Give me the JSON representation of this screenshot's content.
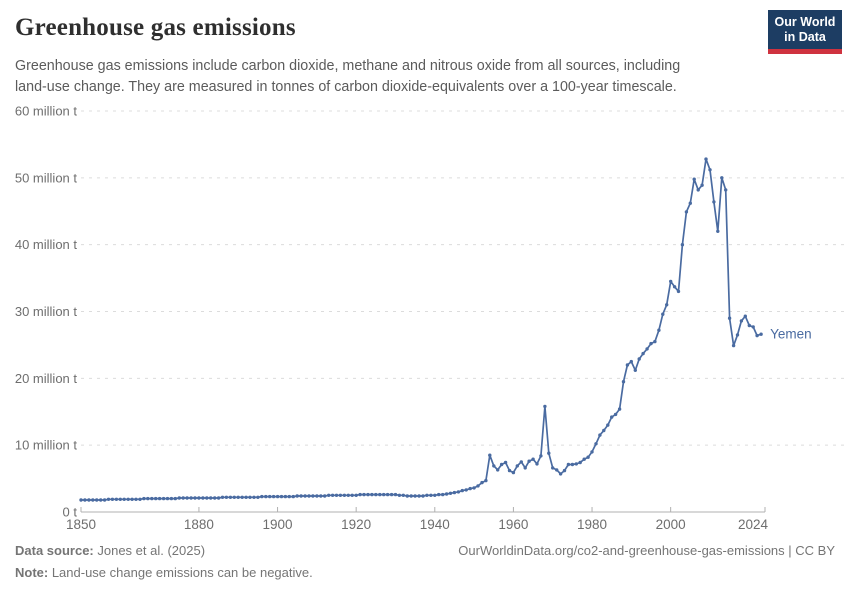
{
  "header": {
    "title": "Greenhouse gas emissions",
    "subtitle_line1": "Greenhouse gas emissions include carbon dioxide, methane and nitrous oxide from all sources, including",
    "subtitle_line2": "land-use change. They are measured in tonnes of carbon dioxide-equivalents over a 100-year timescale.",
    "logo": {
      "line1": "Our World",
      "line2": "in Data"
    }
  },
  "colors": {
    "series_blue": "#4a6ba1",
    "grid": "#dcdcdc",
    "axis": "#b0b0b0",
    "tick_text": "#6e6e6e",
    "logo_navy": "#1d3d63",
    "logo_red": "#cf323f"
  },
  "chart_data": {
    "type": "line",
    "title": "Greenhouse gas emissions",
    "unit": "tonnes of CO2-equivalents",
    "xlim": [
      1850,
      2024
    ],
    "ylim": [
      0,
      60000000
    ],
    "grid": "horizontal-dashed",
    "legend_position": "end-of-line-label",
    "entity_label": "Yemen",
    "y_ticks": [
      {
        "value": 0,
        "label": "0 t"
      },
      {
        "value": 10,
        "label": "10 million t"
      },
      {
        "value": 20,
        "label": "20 million t"
      },
      {
        "value": 30,
        "label": "30 million t"
      },
      {
        "value": 40,
        "label": "40 million t"
      },
      {
        "value": 50,
        "label": "50 million t"
      },
      {
        "value": 60,
        "label": "60 million t"
      }
    ],
    "x_ticks": [
      {
        "year": 1850,
        "label": "1850"
      },
      {
        "year": 1880,
        "label": "1880"
      },
      {
        "year": 1900,
        "label": "1900"
      },
      {
        "year": 1920,
        "label": "1920"
      },
      {
        "year": 1940,
        "label": "1940"
      },
      {
        "year": 1960,
        "label": "1960"
      },
      {
        "year": 1980,
        "label": "1980"
      },
      {
        "year": 2000,
        "label": "2000"
      },
      {
        "year": 2024,
        "label": "2024"
      }
    ],
    "value_unit_scale": "million t",
    "series": [
      {
        "name": "Yemen",
        "color": "#4a6ba1",
        "x": [
          1850,
          1851,
          1852,
          1853,
          1854,
          1855,
          1856,
          1857,
          1858,
          1859,
          1860,
          1861,
          1862,
          1863,
          1864,
          1865,
          1866,
          1867,
          1868,
          1869,
          1870,
          1871,
          1872,
          1873,
          1874,
          1875,
          1876,
          1877,
          1878,
          1879,
          1880,
          1881,
          1882,
          1883,
          1884,
          1885,
          1886,
          1887,
          1888,
          1889,
          1890,
          1891,
          1892,
          1893,
          1894,
          1895,
          1896,
          1897,
          1898,
          1899,
          1900,
          1901,
          1902,
          1903,
          1904,
          1905,
          1906,
          1907,
          1908,
          1909,
          1910,
          1911,
          1912,
          1913,
          1914,
          1915,
          1916,
          1917,
          1918,
          1919,
          1920,
          1921,
          1922,
          1923,
          1924,
          1925,
          1926,
          1927,
          1928,
          1929,
          1930,
          1931,
          1932,
          1933,
          1934,
          1935,
          1936,
          1937,
          1938,
          1939,
          1940,
          1941,
          1942,
          1943,
          1944,
          1945,
          1946,
          1947,
          1948,
          1949,
          1950,
          1951,
          1952,
          1953,
          1954,
          1955,
          1956,
          1957,
          1958,
          1959,
          1960,
          1961,
          1962,
          1963,
          1964,
          1965,
          1966,
          1967,
          1968,
          1969,
          1970,
          1971,
          1972,
          1973,
          1974,
          1975,
          1976,
          1977,
          1978,
          1979,
          1980,
          1981,
          1982,
          1983,
          1984,
          1985,
          1986,
          1987,
          1988,
          1989,
          1990,
          1991,
          1992,
          1993,
          1994,
          1995,
          1996,
          1997,
          1998,
          1999,
          2000,
          2001,
          2002,
          2003,
          2004,
          2005,
          2006,
          2007,
          2008,
          2009,
          2010,
          2011,
          2012,
          2013,
          2014,
          2015,
          2016,
          2017,
          2018,
          2019,
          2020,
          2021,
          2022,
          2023
        ],
        "values_million_t": [
          1.8,
          1.8,
          1.8,
          1.8,
          1.8,
          1.8,
          1.8,
          1.9,
          1.9,
          1.9,
          1.9,
          1.9,
          1.9,
          1.9,
          1.9,
          1.9,
          2.0,
          2.0,
          2.0,
          2.0,
          2.0,
          2.0,
          2.0,
          2.0,
          2.0,
          2.1,
          2.1,
          2.1,
          2.1,
          2.1,
          2.1,
          2.1,
          2.1,
          2.1,
          2.1,
          2.1,
          2.2,
          2.2,
          2.2,
          2.2,
          2.2,
          2.2,
          2.2,
          2.2,
          2.2,
          2.2,
          2.3,
          2.3,
          2.3,
          2.3,
          2.3,
          2.3,
          2.3,
          2.3,
          2.3,
          2.4,
          2.4,
          2.4,
          2.4,
          2.4,
          2.4,
          2.4,
          2.4,
          2.5,
          2.5,
          2.5,
          2.5,
          2.5,
          2.5,
          2.5,
          2.5,
          2.6,
          2.6,
          2.6,
          2.6,
          2.6,
          2.6,
          2.6,
          2.6,
          2.6,
          2.6,
          2.5,
          2.5,
          2.4,
          2.4,
          2.4,
          2.4,
          2.4,
          2.5,
          2.5,
          2.5,
          2.6,
          2.6,
          2.7,
          2.8,
          2.9,
          3.0,
          3.2,
          3.3,
          3.5,
          3.6,
          3.9,
          4.4,
          4.7,
          8.5,
          6.9,
          6.3,
          7.1,
          7.4,
          6.2,
          5.9,
          6.9,
          7.5,
          6.6,
          7.6,
          7.9,
          7.2,
          8.4,
          15.8,
          8.8,
          6.6,
          6.3,
          5.7,
          6.2,
          7.1,
          7.1,
          7.2,
          7.4,
          7.9,
          8.2,
          9.0,
          10.2,
          11.5,
          12.2,
          13.0,
          14.2,
          14.6,
          15.4,
          19.5,
          22.0,
          22.5,
          21.2,
          22.9,
          23.7,
          24.4,
          25.2,
          25.5,
          27.2,
          29.6,
          31.0,
          34.5,
          33.7,
          33.0,
          40.0,
          44.9,
          46.2,
          49.8,
          48.2,
          48.9,
          52.8,
          51.2,
          46.4,
          42.0,
          50.0,
          48.2,
          29.0,
          24.9,
          26.5,
          28.6,
          29.3,
          27.9,
          27.7,
          26.4,
          26.6
        ]
      }
    ]
  },
  "footer": {
    "data_source_label": "Data source:",
    "data_source_value": " Jones et al. (2025)",
    "citation": "OurWorldinData.org/co2-and-greenhouse-gas-emissions | CC BY",
    "note_label": "Note:",
    "note_value": " Land-use change emissions can be negative."
  }
}
